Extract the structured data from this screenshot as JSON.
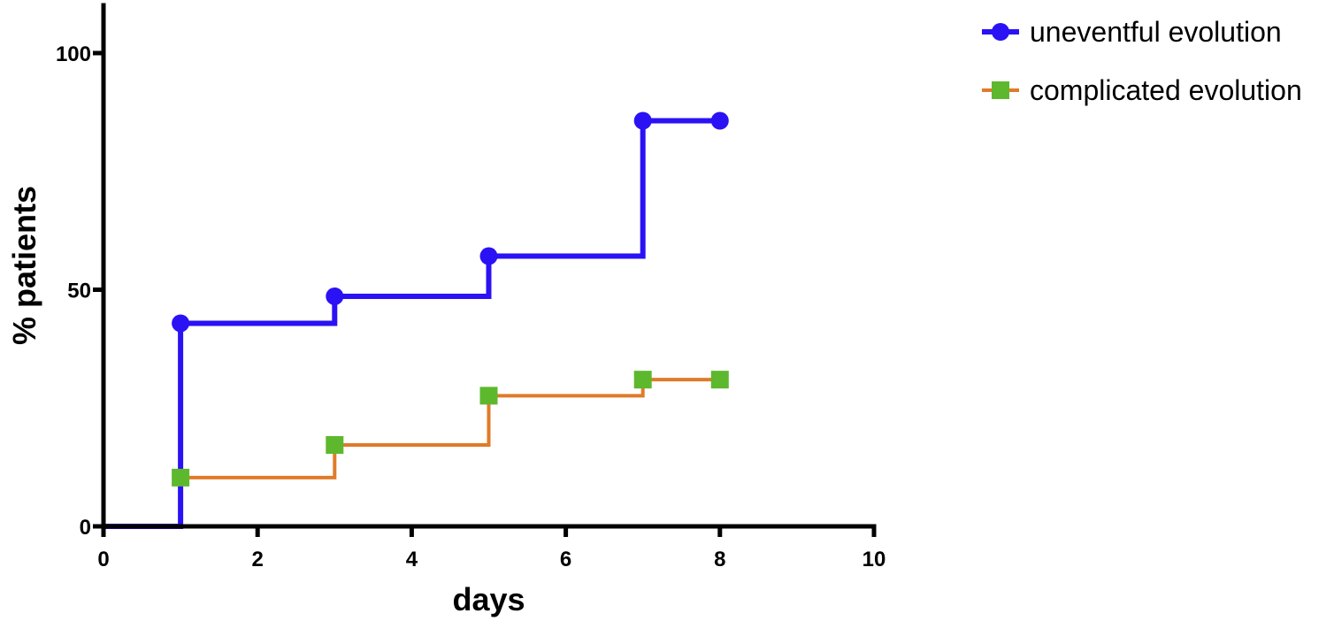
{
  "chart_data": {
    "type": "line",
    "step": true,
    "xlabel": "days",
    "ylabel": "% patients",
    "xlim": [
      0,
      10
    ],
    "ylim": [
      0,
      100
    ],
    "y_axis_max": 110,
    "xticks": [
      0,
      2,
      4,
      6,
      8,
      10
    ],
    "yticks": [
      0,
      50,
      100
    ],
    "xtick_labels": [
      "0",
      "2",
      "4",
      "6",
      "8",
      "10"
    ],
    "ytick_labels": [
      "0",
      "50",
      "100"
    ],
    "grid": false,
    "legend_position": "top-right",
    "series": [
      {
        "name": "uneventful evolution",
        "color": "#2a12f5",
        "marker": "circle",
        "points": [
          {
            "x": 1,
            "y": 42.9
          },
          {
            "x": 3,
            "y": 48.6
          },
          {
            "x": 5,
            "y": 57.1
          },
          {
            "x": 7,
            "y": 85.7
          },
          {
            "x": 8,
            "y": 85.7
          }
        ]
      },
      {
        "name": "complicated evolution",
        "color": "#e07b28",
        "marker_color": "#5db82e",
        "marker": "square",
        "points": [
          {
            "x": 1,
            "y": 10.3
          },
          {
            "x": 3,
            "y": 17.2
          },
          {
            "x": 5,
            "y": 27.6
          },
          {
            "x": 7,
            "y": 31.0
          },
          {
            "x": 8,
            "y": 31.0
          }
        ]
      }
    ]
  }
}
